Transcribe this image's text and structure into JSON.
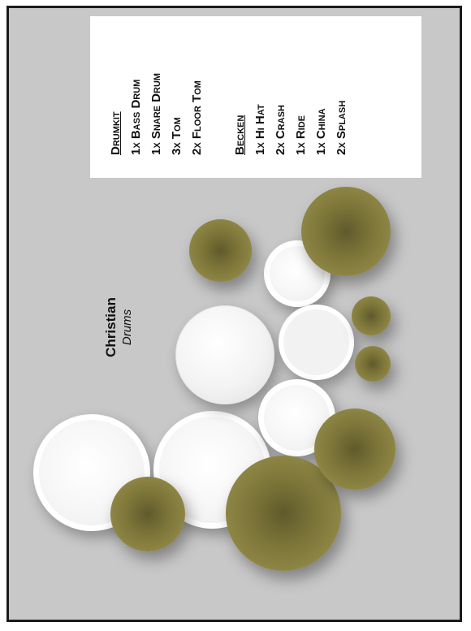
{
  "legend": {
    "drumkit_heading": "Drumkit",
    "drumkit_items": [
      "1x Bass Drum",
      "1x Snare Drum",
      "3x Tom",
      "2x Floor Tom"
    ],
    "cymbals_heading": "Becken",
    "cymbal_items": [
      "1x Hi Hat",
      "2x Crash",
      "1x Ride",
      "1x China",
      "2x Splash"
    ]
  },
  "player": {
    "name": "Christian",
    "instrument": "Drums"
  },
  "colors": {
    "background": "#c8c8c8",
    "border": "#1b1b1b",
    "drum_head": "#f4f4f4",
    "cymbal": "#8d8544"
  }
}
